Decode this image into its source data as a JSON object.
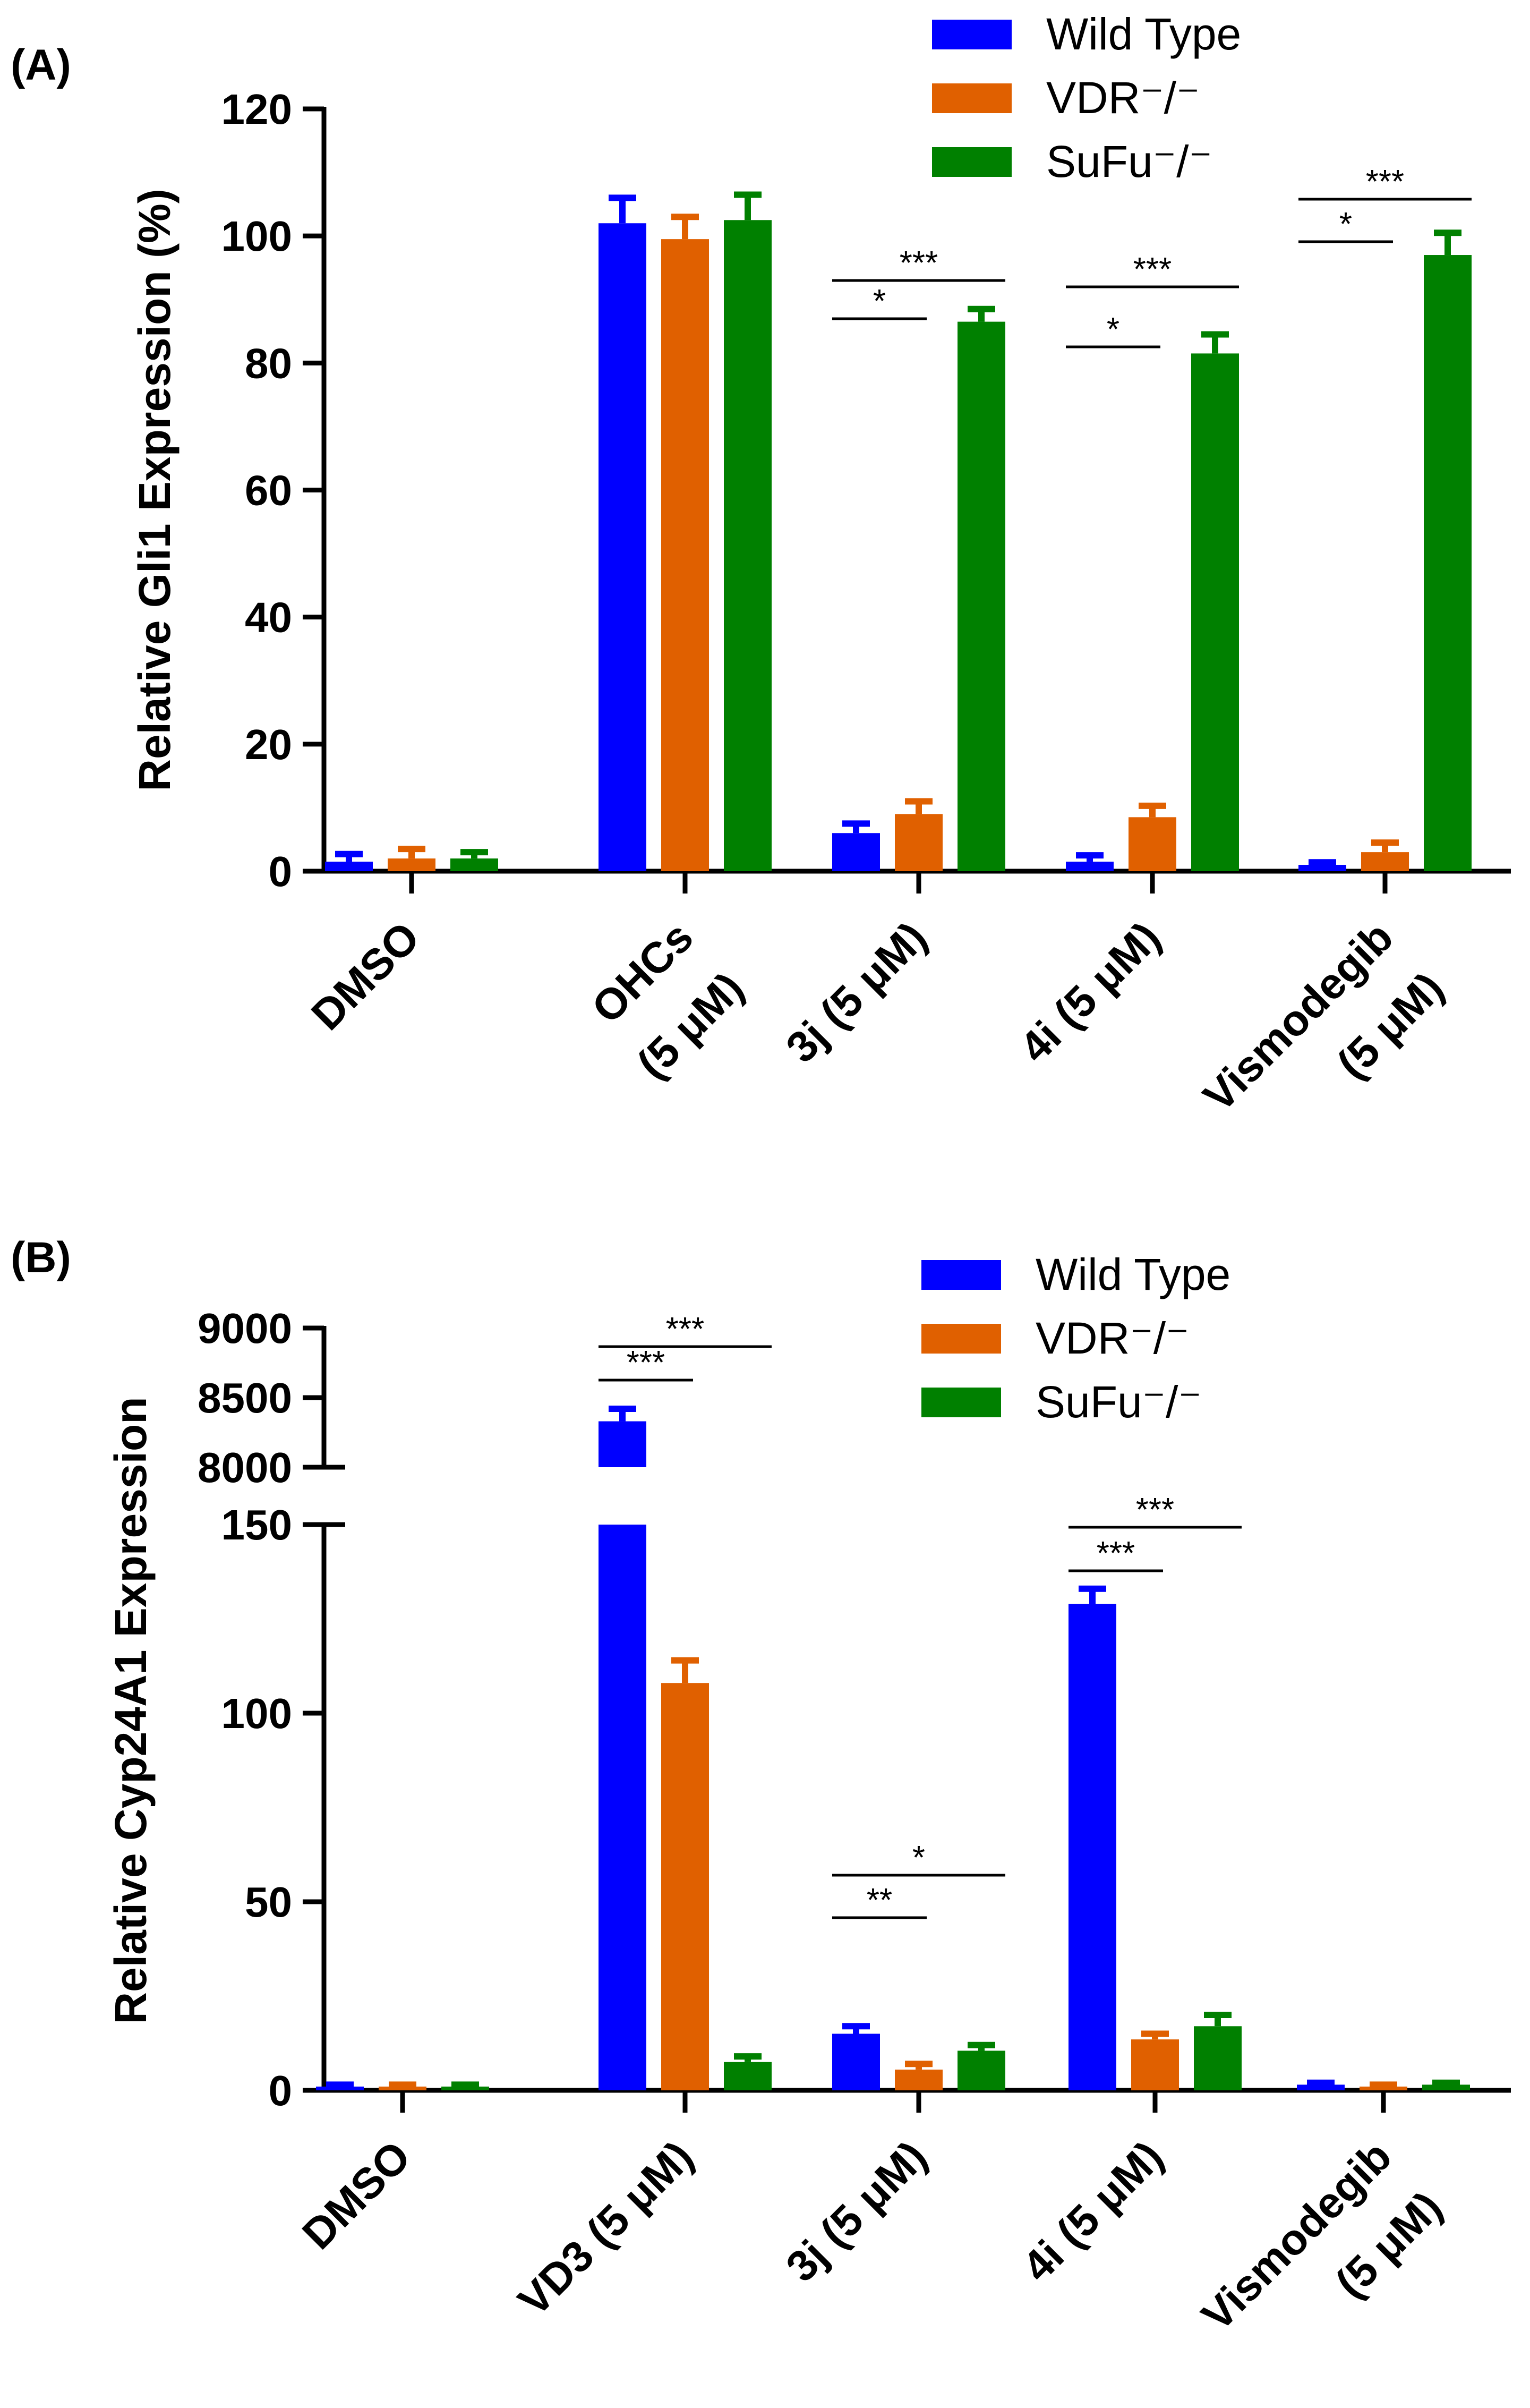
{
  "colors": {
    "wild_type": "#0000FF",
    "vdr": "#E06000",
    "sufu": "#008000",
    "axis": "#000000"
  },
  "chart_data": [
    {
      "panel": "(A)",
      "type": "bar",
      "ylabel": "Relative Gli1 Expression (%)",
      "ylim": [
        0,
        120
      ],
      "yticks": [
        "0",
        "20",
        "40",
        "60",
        "80",
        "100",
        "120"
      ],
      "categories": [
        [
          "DMSO"
        ],
        [
          "OHCs",
          "(5 μM)"
        ],
        [
          "3j (5 μM)"
        ],
        [
          "4i (5 μM)"
        ],
        [
          "Vismodegib",
          "(5 μM)"
        ]
      ],
      "legend": [
        "Wild Type",
        "VDR⁻/⁻",
        "SuFu⁻/⁻"
      ],
      "series": [
        {
          "name": "Wild Type",
          "values": [
            1.5,
            102,
            6,
            1.5,
            1
          ],
          "errors": [
            1.2,
            4,
            1.5,
            1,
            0.4
          ]
        },
        {
          "name": "VDR⁻/⁻",
          "values": [
            2,
            99.5,
            9,
            8.5,
            3
          ],
          "errors": [
            1.5,
            3.5,
            2,
            1.8,
            1.5
          ]
        },
        {
          "name": "SuFu⁻/⁻",
          "values": [
            2,
            102.5,
            86.5,
            81.5,
            97
          ],
          "errors": [
            1,
            4,
            2,
            3,
            3.5
          ]
        }
      ],
      "significance": [
        {
          "category": 2,
          "from": 0,
          "to": 1,
          "label": "*"
        },
        {
          "category": 2,
          "from": 0,
          "to": 2,
          "label": "***"
        },
        {
          "category": 3,
          "from": 0,
          "to": 1,
          "label": "*"
        },
        {
          "category": 3,
          "from": 0,
          "to": 2,
          "label": "***"
        },
        {
          "category": 4,
          "from": 0,
          "to": 1,
          "label": "*"
        },
        {
          "category": 4,
          "from": 0,
          "to": 2,
          "label": "***"
        }
      ]
    },
    {
      "panel": "(B)",
      "type": "bar",
      "ylabel": "Relative Cyp24A1 Expression",
      "ylim_lower": [
        0,
        150
      ],
      "ylim_upper": [
        8000,
        9000
      ],
      "yticks_lower": [
        "0",
        "50",
        "100",
        "150"
      ],
      "yticks_upper": [
        "8000",
        "8500",
        "9000"
      ],
      "categories": [
        [
          "DMSO"
        ],
        [
          "VD3 (5 μM)"
        ],
        [
          "3j (5 μM)"
        ],
        [
          "4i (5 μM)"
        ],
        [
          "Vismodegib",
          "(5 μM)"
        ]
      ],
      "legend": [
        "Wild Type",
        "VDR⁻/⁻",
        "SuFu⁻/⁻"
      ],
      "series": [
        {
          "name": "Wild Type",
          "values": [
            1,
            8330,
            15,
            129,
            1.5
          ],
          "errors": [
            0.5,
            90,
            2,
            4,
            0.5
          ]
        },
        {
          "name": "VDR⁻/⁻",
          "values": [
            1,
            108,
            5.5,
            13.5,
            1
          ],
          "errors": [
            0.5,
            6,
            1.5,
            1.5,
            0.5
          ]
        },
        {
          "name": "SuFu⁻/⁻",
          "values": [
            1,
            7.5,
            10.5,
            17,
            1.5
          ],
          "errors": [
            0.5,
            1.5,
            1.5,
            3,
            0.5
          ]
        }
      ],
      "significance": [
        {
          "category": 1,
          "from": 0,
          "to": 1,
          "label": "***"
        },
        {
          "category": 1,
          "from": 0,
          "to": 2,
          "label": "***"
        },
        {
          "category": 2,
          "from": 0,
          "to": 1,
          "label": "**"
        },
        {
          "category": 2,
          "from": 0,
          "to": 2,
          "label": "*"
        },
        {
          "category": 3,
          "from": 0,
          "to": 1,
          "label": "***"
        },
        {
          "category": 3,
          "from": 0,
          "to": 2,
          "label": "***"
        }
      ]
    }
  ]
}
